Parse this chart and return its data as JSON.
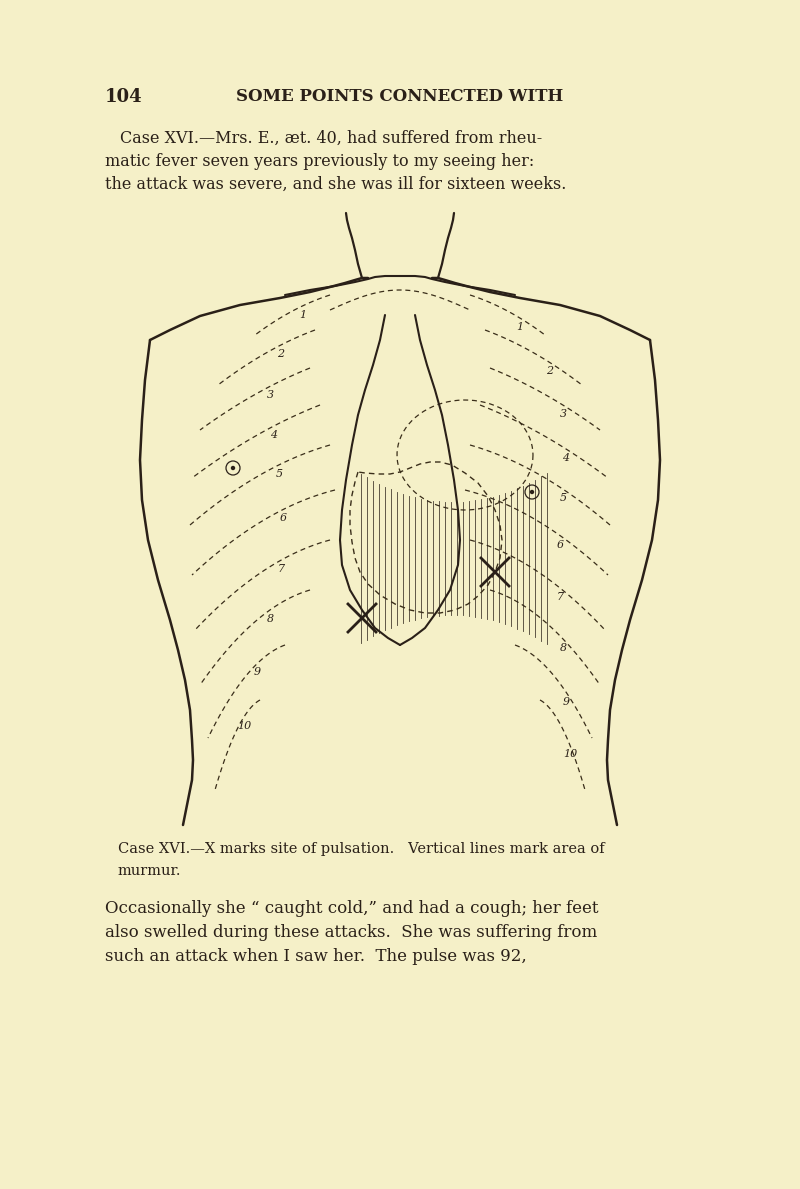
{
  "background_color": "#f5f0c8",
  "page_number": "104",
  "header_text": "SOME POINTS CONNECTED WITH",
  "paragraph1_line1": "Case XVI.—Mrs. E., æt. 40, had suffered from rheu-",
  "paragraph1_line2": "matic fever seven years previously to my seeing her:",
  "paragraph1_line3": "the attack was severe, and she was ill for sixteen weeks.",
  "caption_line1": "Case XVI.—X marks site of pulsation.   Vertical lines mark area of",
  "caption_line2": "murmur.",
  "paragraph2_line1": "Occasionally she “ caught cold,” and had a cough; her feet",
  "paragraph2_line2": "also swelled during these attacks.  She was suffering from",
  "paragraph2_line3": "such an attack when I saw her.  The pulse was 92,",
  "ink_color": "#2a2018",
  "dashed_color": "#3a2e1a"
}
